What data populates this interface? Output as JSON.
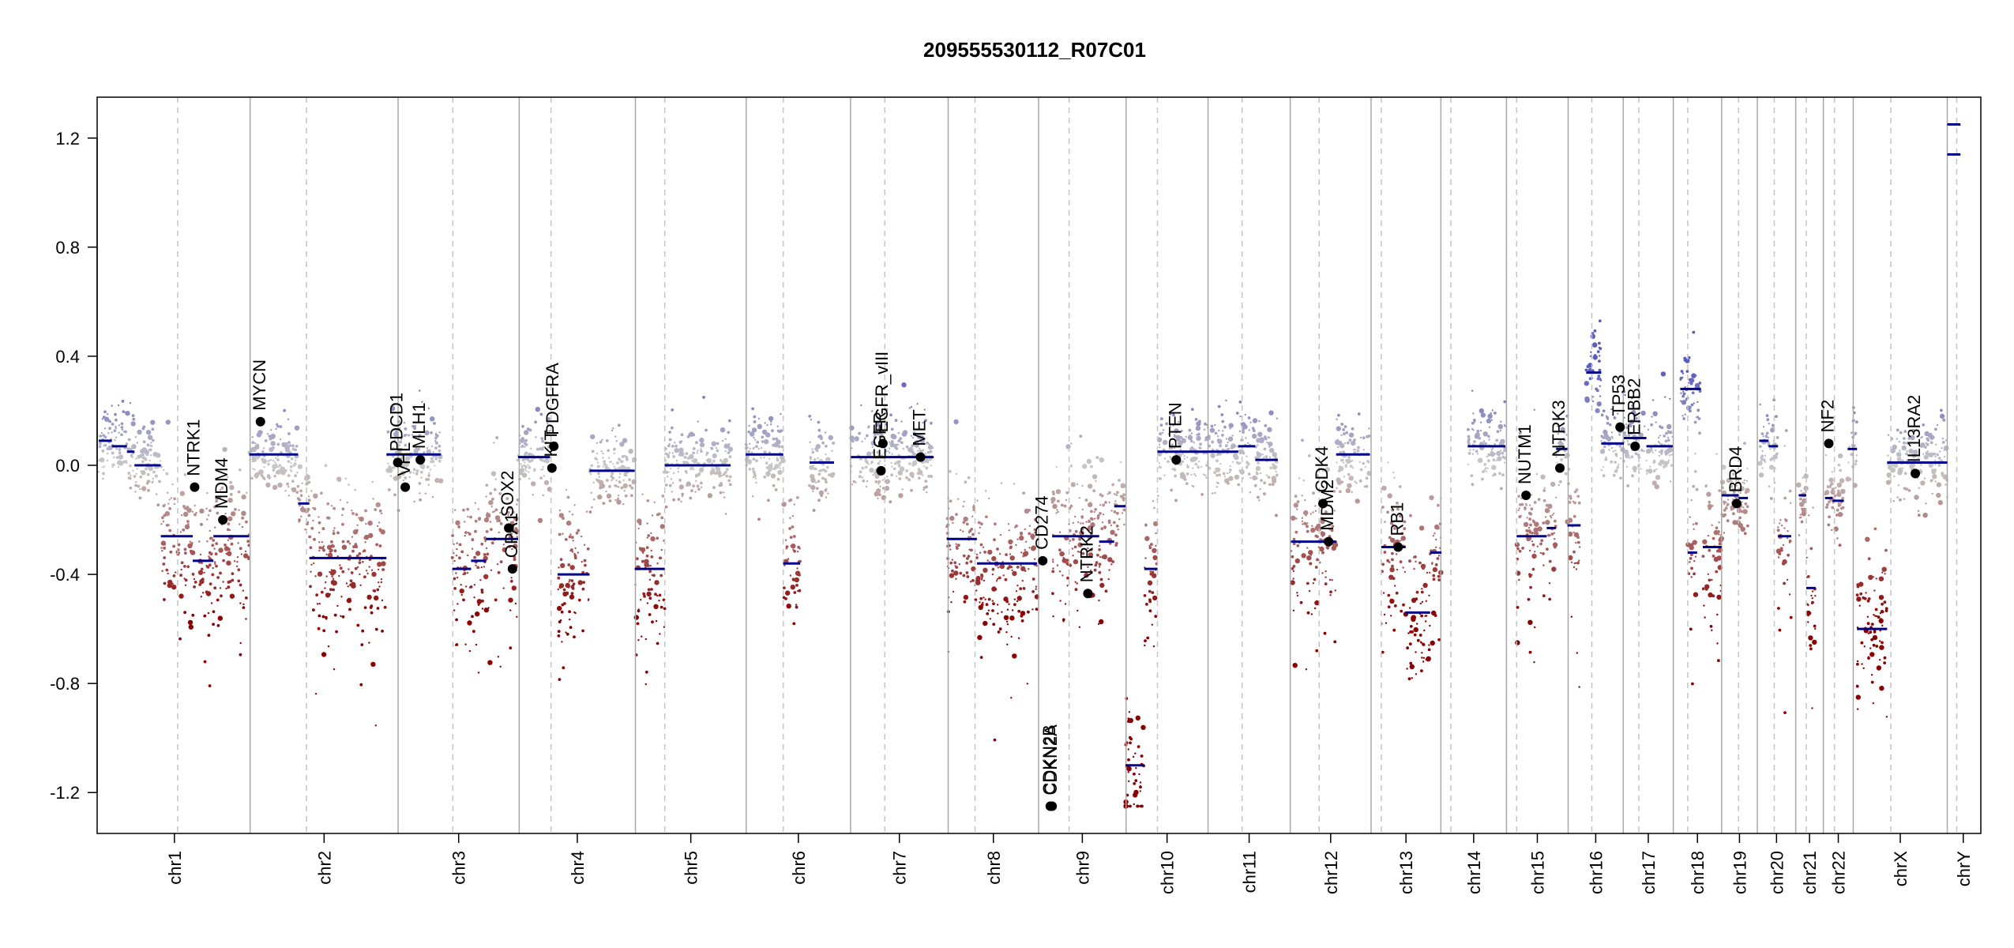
{
  "chart_data": {
    "type": "scatter",
    "title": "209555530112_R07C01",
    "xlabel": "",
    "ylabel": "",
    "ylim": [
      -1.35,
      1.35
    ],
    "y_ticks": [
      1.2,
      0.8,
      0.4,
      0.0,
      -0.4,
      -0.8,
      -1.2
    ],
    "y_tick_labels": [
      "1.2",
      "0.8",
      "0.4",
      "0.0",
      "-0.4",
      "-0.8",
      "-1.2"
    ],
    "colors": {
      "gain": "#5b5bbd",
      "neutral": "#c8c8c8",
      "loss": "#8b0000",
      "segment": "#00008b",
      "gene_marker": "#000000"
    },
    "chromosomes": [
      {
        "name": "chr1",
        "start": 0.0,
        "end": 0.0805,
        "centro": 0.042
      },
      {
        "name": "chr2",
        "start": 0.0805,
        "end": 0.1592,
        "centro": 0.1105
      },
      {
        "name": "chr3",
        "start": 0.1592,
        "end": 0.2236,
        "centro": 0.1883
      },
      {
        "name": "chr4",
        "start": 0.2236,
        "end": 0.2854,
        "centro": 0.2405
      },
      {
        "name": "chr5",
        "start": 0.2854,
        "end": 0.3443,
        "centro": 0.301
      },
      {
        "name": "chr6",
        "start": 0.3443,
        "end": 0.3998,
        "centro": 0.364
      },
      {
        "name": "chr7",
        "start": 0.3998,
        "end": 0.4517,
        "centro": 0.418
      },
      {
        "name": "chr8",
        "start": 0.4517,
        "end": 0.4998,
        "centro": 0.466
      },
      {
        "name": "chr9",
        "start": 0.4998,
        "end": 0.5463,
        "centro": 0.516
      },
      {
        "name": "chr10",
        "start": 0.5463,
        "end": 0.5899,
        "centro": 0.563
      },
      {
        "name": "chr11",
        "start": 0.5899,
        "end": 0.6336,
        "centro": 0.608
      },
      {
        "name": "chr12",
        "start": 0.6336,
        "end": 0.6766,
        "centro": 0.649
      },
      {
        "name": "chr13",
        "start": 0.6766,
        "end": 0.7137,
        "centro": 0.682
      },
      {
        "name": "chr14",
        "start": 0.7137,
        "end": 0.7486,
        "centro": 0.719
      },
      {
        "name": "chr15",
        "start": 0.7486,
        "end": 0.7814,
        "centro": 0.754
      },
      {
        "name": "chr16",
        "start": 0.7814,
        "end": 0.8107,
        "centro": 0.794
      },
      {
        "name": "chr17",
        "start": 0.8107,
        "end": 0.8373,
        "centro": 0.819
      },
      {
        "name": "chr18",
        "start": 0.8373,
        "end": 0.863,
        "centro": 0.845
      },
      {
        "name": "chr19",
        "start": 0.863,
        "end": 0.882,
        "centro": 0.872
      },
      {
        "name": "chr20",
        "start": 0.882,
        "end": 0.9024,
        "centro": 0.891
      },
      {
        "name": "chr21",
        "start": 0.9024,
        "end": 0.9171,
        "centro": 0.908
      },
      {
        "name": "chr22",
        "start": 0.9171,
        "end": 0.933,
        "centro": 0.923
      },
      {
        "name": "chrX",
        "start": 0.933,
        "end": 0.983,
        "centro": 0.953
      },
      {
        "name": "chrY",
        "start": 0.983,
        "end": 1.0,
        "centro": 0.988
      }
    ],
    "segments": [
      {
        "x0": 0.0,
        "x1": 0.007,
        "y": 0.09
      },
      {
        "x0": 0.007,
        "x1": 0.015,
        "y": 0.07
      },
      {
        "x0": 0.015,
        "x1": 0.019,
        "y": 0.05
      },
      {
        "x0": 0.019,
        "x1": 0.024,
        "y": 0.0
      },
      {
        "x0": 0.024,
        "x1": 0.033,
        "y": 0.0
      },
      {
        "x0": 0.033,
        "x1": 0.05,
        "y": -0.26
      },
      {
        "x0": 0.05,
        "x1": 0.061,
        "y": -0.35
      },
      {
        "x0": 0.061,
        "x1": 0.068,
        "y": -0.26
      },
      {
        "x0": 0.068,
        "x1": 0.08,
        "y": -0.26
      },
      {
        "x0": 0.08,
        "x1": 0.096,
        "y": 0.04
      },
      {
        "x0": 0.096,
        "x1": 0.106,
        "y": 0.04
      },
      {
        "x0": 0.106,
        "x1": 0.112,
        "y": -0.14
      },
      {
        "x0": 0.112,
        "x1": 0.153,
        "y": -0.34
      },
      {
        "x0": 0.153,
        "x1": 0.163,
        "y": 0.04
      },
      {
        "x0": 0.163,
        "x1": 0.182,
        "y": 0.04
      },
      {
        "x0": 0.188,
        "x1": 0.198,
        "y": -0.38
      },
      {
        "x0": 0.198,
        "x1": 0.206,
        "y": -0.35
      },
      {
        "x0": 0.206,
        "x1": 0.223,
        "y": -0.27
      },
      {
        "x0": 0.223,
        "x1": 0.24,
        "y": 0.03
      },
      {
        "x0": 0.244,
        "x1": 0.261,
        "y": -0.4
      },
      {
        "x0": 0.261,
        "x1": 0.285,
        "y": -0.02
      },
      {
        "x0": 0.285,
        "x1": 0.301,
        "y": -0.38
      },
      {
        "x0": 0.301,
        "x1": 0.336,
        "y": 0.0
      },
      {
        "x0": 0.344,
        "x1": 0.364,
        "y": 0.04
      },
      {
        "x0": 0.364,
        "x1": 0.373,
        "y": -0.36
      },
      {
        "x0": 0.378,
        "x1": 0.391,
        "y": 0.01
      },
      {
        "x0": 0.4,
        "x1": 0.444,
        "y": 0.03
      },
      {
        "x0": 0.451,
        "x1": 0.467,
        "y": -0.27
      },
      {
        "x0": 0.467,
        "x1": 0.485,
        "y": -0.36
      },
      {
        "x0": 0.485,
        "x1": 0.499,
        "y": -0.36
      },
      {
        "x0": 0.507,
        "x1": 0.532,
        "y": -0.26
      },
      {
        "x0": 0.532,
        "x1": 0.54,
        "y": -0.28
      },
      {
        "x0": 0.54,
        "x1": 0.546,
        "y": -0.15
      },
      {
        "x0": 0.546,
        "x1": 0.556,
        "y": -1.1
      },
      {
        "x0": 0.556,
        "x1": 0.563,
        "y": -0.38
      },
      {
        "x0": 0.563,
        "x1": 0.59,
        "y": 0.05
      },
      {
        "x0": 0.59,
        "x1": 0.606,
        "y": 0.05
      },
      {
        "x0": 0.606,
        "x1": 0.615,
        "y": 0.07
      },
      {
        "x0": 0.615,
        "x1": 0.627,
        "y": 0.02
      },
      {
        "x0": 0.634,
        "x1": 0.652,
        "y": -0.28
      },
      {
        "x0": 0.652,
        "x1": 0.658,
        "y": -0.28
      },
      {
        "x0": 0.658,
        "x1": 0.676,
        "y": 0.04
      },
      {
        "x0": 0.682,
        "x1": 0.695,
        "y": -0.3
      },
      {
        "x0": 0.695,
        "x1": 0.708,
        "y": -0.54
      },
      {
        "x0": 0.708,
        "x1": 0.714,
        "y": -0.32
      },
      {
        "x0": 0.728,
        "x1": 0.748,
        "y": 0.07
      },
      {
        "x0": 0.754,
        "x1": 0.77,
        "y": -0.26
      },
      {
        "x0": 0.77,
        "x1": 0.775,
        "y": -0.23
      },
      {
        "x0": 0.775,
        "x1": 0.781,
        "y": 0.06
      },
      {
        "x0": 0.781,
        "x1": 0.788,
        "y": -0.22
      },
      {
        "x0": 0.791,
        "x1": 0.799,
        "y": 0.34
      },
      {
        "x0": 0.799,
        "x1": 0.811,
        "y": 0.08
      },
      {
        "x0": 0.811,
        "x1": 0.823,
        "y": 0.1
      },
      {
        "x0": 0.823,
        "x1": 0.837,
        "y": 0.07
      },
      {
        "x0": 0.841,
        "x1": 0.852,
        "y": 0.28
      },
      {
        "x0": 0.845,
        "x1": 0.85,
        "y": -0.32
      },
      {
        "x0": 0.853,
        "x1": 0.863,
        "y": -0.3
      },
      {
        "x0": 0.863,
        "x1": 0.872,
        "y": -0.11
      },
      {
        "x0": 0.872,
        "x1": 0.877,
        "y": -0.12
      },
      {
        "x0": 0.883,
        "x1": 0.888,
        "y": 0.09
      },
      {
        "x0": 0.888,
        "x1": 0.893,
        "y": 0.07
      },
      {
        "x0": 0.893,
        "x1": 0.9,
        "y": -0.26
      },
      {
        "x0": 0.904,
        "x1": 0.908,
        "y": -0.11
      },
      {
        "x0": 0.908,
        "x1": 0.913,
        "y": -0.45
      },
      {
        "x0": 0.918,
        "x1": 0.922,
        "y": -0.12
      },
      {
        "x0": 0.922,
        "x1": 0.928,
        "y": -0.13
      },
      {
        "x0": 0.93,
        "x1": 0.935,
        "y": 0.06
      },
      {
        "x0": 0.935,
        "x1": 0.951,
        "y": -0.6
      },
      {
        "x0": 0.951,
        "x1": 0.983,
        "y": 0.01
      },
      {
        "x0": 0.983,
        "x1": 0.99,
        "y": 1.14
      },
      {
        "x0": 0.983,
        "x1": 0.99,
        "y": 1.25
      }
    ],
    "genes": [
      {
        "name": "NTRK1",
        "x": 0.051,
        "y": -0.08
      },
      {
        "name": "MDM4",
        "x": 0.066,
        "y": -0.2
      },
      {
        "name": "MYCN",
        "x": 0.086,
        "y": 0.16
      },
      {
        "name": "PDCD1",
        "x": 0.159,
        "y": 0.01
      },
      {
        "name": "VHL",
        "x": 0.163,
        "y": -0.08
      },
      {
        "name": "MLH1",
        "x": 0.171,
        "y": 0.02
      },
      {
        "name": "SOX2",
        "x": 0.218,
        "y": -0.23
      },
      {
        "name": "OPA1",
        "x": 0.22,
        "y": -0.38
      },
      {
        "name": "PDGFRA",
        "x": 0.242,
        "y": 0.07
      },
      {
        "name": "KIT",
        "x": 0.241,
        "y": -0.01
      },
      {
        "name": "EGFR_vIII",
        "x": 0.417,
        "y": 0.08
      },
      {
        "name": "EGFR",
        "x": 0.416,
        "y": -0.02
      },
      {
        "name": "MET",
        "x": 0.437,
        "y": 0.03
      },
      {
        "name": "CD274",
        "x": 0.502,
        "y": -0.35
      },
      {
        "name": "CDKN2B",
        "x": 0.506,
        "y": -1.25
      },
      {
        "name": "CDKN2A",
        "x": 0.507,
        "y": -1.25
      },
      {
        "name": "NTRK2",
        "x": 0.526,
        "y": -0.47
      },
      {
        "name": "PTEN",
        "x": 0.573,
        "y": 0.02
      },
      {
        "name": "CDK4",
        "x": 0.651,
        "y": -0.14
      },
      {
        "name": "MDM2",
        "x": 0.654,
        "y": -0.28
      },
      {
        "name": "RB1",
        "x": 0.691,
        "y": -0.3
      },
      {
        "name": "NUTM1",
        "x": 0.759,
        "y": -0.11
      },
      {
        "name": "NTRK3",
        "x": 0.777,
        "y": -0.01
      },
      {
        "name": "TP53",
        "x": 0.809,
        "y": 0.14
      },
      {
        "name": "ERBB2",
        "x": 0.817,
        "y": 0.07
      },
      {
        "name": "BRD4",
        "x": 0.871,
        "y": -0.14
      },
      {
        "name": "NF2",
        "x": 0.92,
        "y": 0.08
      },
      {
        "name": "IL13RA2",
        "x": 0.966,
        "y": -0.03
      }
    ]
  }
}
